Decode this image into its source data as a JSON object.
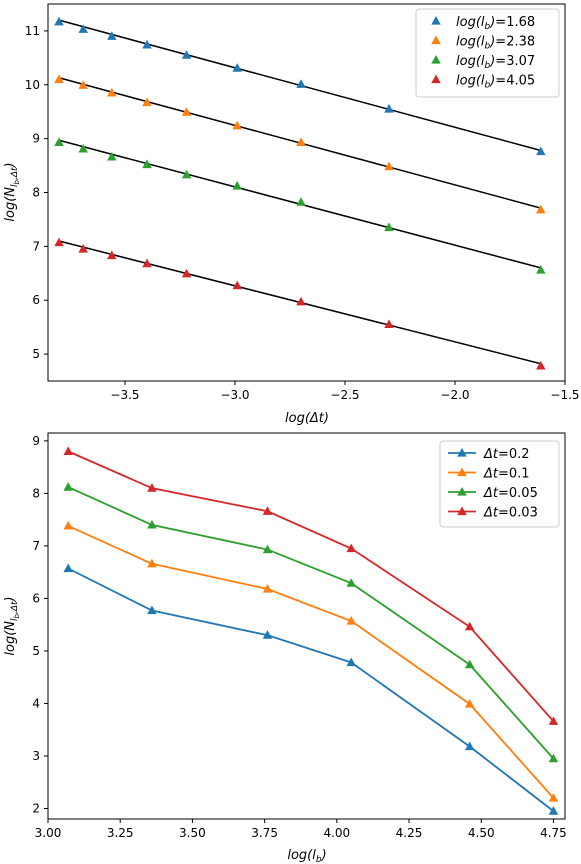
{
  "chart_data": [
    {
      "type": "scatter",
      "title": "",
      "xlabel": "log(Δt)",
      "ylabel": "log(N_{l_b,Δt})",
      "ylabel_parts": {
        "main": "log(N",
        "sub1": "l",
        "sub2": "b",
        "sub3": ",Δt",
        "close": ")"
      },
      "xlim": [
        -3.85,
        -1.5
      ],
      "ylim": [
        4.5,
        11.5
      ],
      "xticks": [
        -3.5,
        -3.0,
        -2.5,
        -2.0,
        -1.5
      ],
      "xtick_labels": [
        "−3.5",
        "−3.0",
        "−2.5",
        "−2.0",
        "−1.5"
      ],
      "yticks": [
        5,
        6,
        7,
        8,
        9,
        10,
        11
      ],
      "ytick_labels": [
        "5",
        "6",
        "7",
        "8",
        "9",
        "10",
        "11"
      ],
      "grid": false,
      "legend_position": "top-right",
      "legend_prefix": "log(l",
      "legend_prefix_sub": "b",
      "legend_suffix": ")=",
      "fit_line_color": "#000000",
      "x": [
        -3.8,
        -3.69,
        -3.56,
        -3.4,
        -3.22,
        -2.99,
        -2.7,
        -2.3,
        -1.61
      ],
      "series": [
        {
          "name": "1.68",
          "color": "#1f77b4",
          "y": [
            11.17,
            11.03,
            10.9,
            10.74,
            10.55,
            10.31,
            10.01,
            9.55,
            8.76
          ],
          "fit": [
            11.2,
            8.78
          ]
        },
        {
          "name": "2.38",
          "color": "#ff7f0e",
          "y": [
            10.1,
            9.99,
            9.85,
            9.67,
            9.49,
            9.24,
            8.93,
            8.48,
            7.68
          ],
          "fit": [
            10.13,
            7.71
          ]
        },
        {
          "name": "3.07",
          "color": "#2ca02c",
          "y": [
            8.93,
            8.81,
            8.66,
            8.52,
            8.33,
            8.12,
            7.82,
            7.35,
            6.56
          ],
          "fit": [
            8.97,
            6.6
          ]
        },
        {
          "name": "4.05",
          "color": "#d62728",
          "y": [
            7.07,
            6.95,
            6.83,
            6.68,
            6.49,
            6.27,
            5.97,
            5.55,
            4.78
          ],
          "fit": [
            7.1,
            4.82
          ]
        }
      ]
    },
    {
      "type": "line",
      "title": "",
      "xlabel": "log(l_b)",
      "xlabel_parts": {
        "main": "log(l",
        "sub": "b",
        "close": ")"
      },
      "ylabel": "log(N_{l_b,Δt})",
      "ylabel_parts": {
        "main": "log(N",
        "sub1": "l",
        "sub2": "b",
        "sub3": ",Δt",
        "close": ")"
      },
      "xlim": [
        3.0,
        4.79
      ],
      "ylim": [
        1.8,
        9.15
      ],
      "xticks": [
        3.0,
        3.25,
        3.5,
        3.75,
        4.0,
        4.25,
        4.5,
        4.75
      ],
      "xtick_labels": [
        "3.00",
        "3.25",
        "3.50",
        "3.75",
        "4.00",
        "4.25",
        "4.50",
        "4.75"
      ],
      "yticks": [
        2,
        3,
        4,
        5,
        6,
        7,
        8,
        9
      ],
      "ytick_labels": [
        "2",
        "3",
        "4",
        "5",
        "6",
        "7",
        "8",
        "9"
      ],
      "grid": false,
      "legend_position": "top-right",
      "legend_prefix": "Δt=",
      "x": [
        3.07,
        3.36,
        3.76,
        4.05,
        4.46,
        4.75
      ],
      "series": [
        {
          "name": "0.2",
          "color": "#1f77b4",
          "y": [
            6.57,
            5.77,
            5.3,
            4.78,
            3.18,
            1.95
          ]
        },
        {
          "name": "0.1",
          "color": "#ff7f0e",
          "y": [
            7.38,
            6.66,
            6.18,
            5.57,
            3.99,
            2.2
          ]
        },
        {
          "name": "0.05",
          "color": "#2ca02c",
          "y": [
            8.12,
            7.4,
            6.93,
            6.29,
            4.74,
            2.95
          ]
        },
        {
          "name": "0.03",
          "color": "#d62728",
          "y": [
            8.8,
            8.1,
            7.66,
            6.95,
            5.46,
            3.66
          ]
        }
      ]
    }
  ]
}
